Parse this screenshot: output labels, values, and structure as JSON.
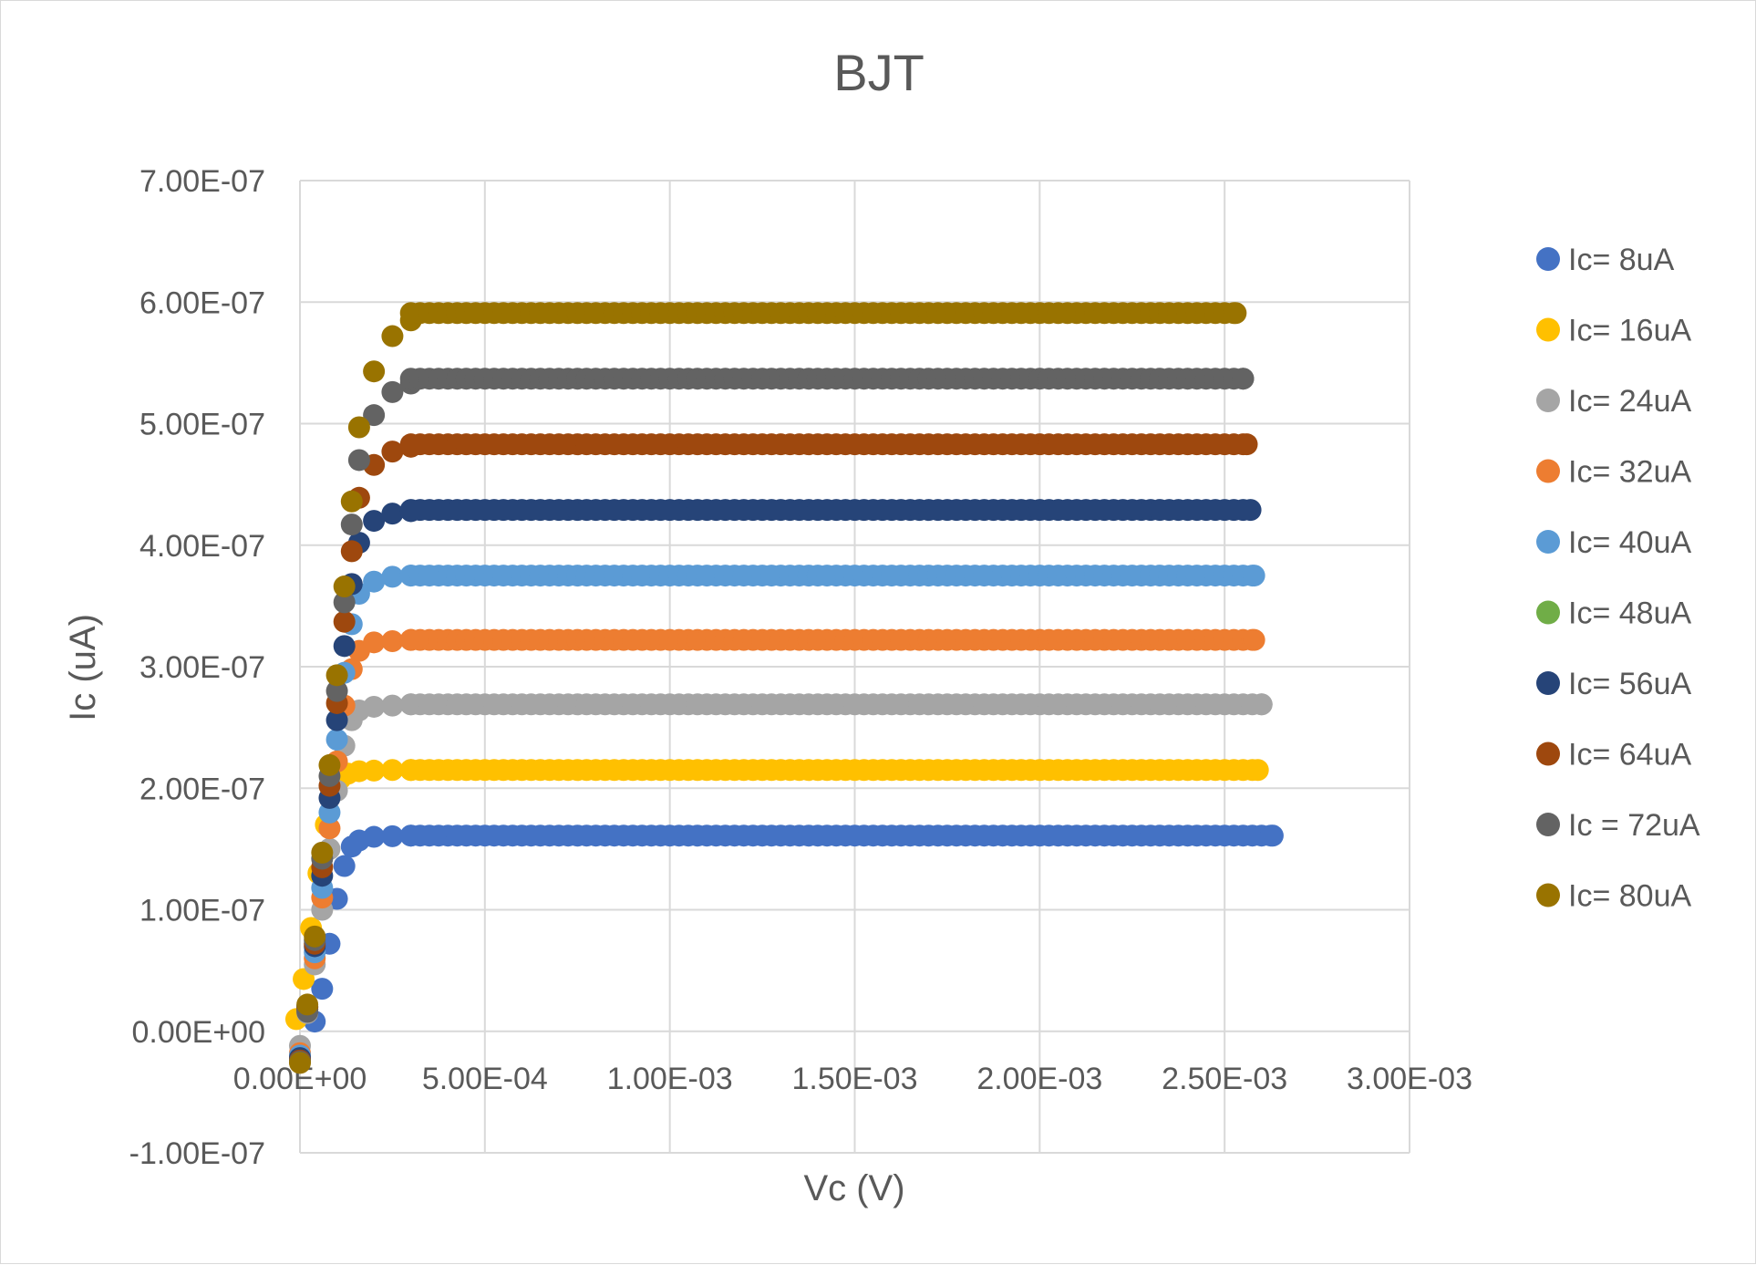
{
  "chart_data": {
    "type": "scatter",
    "title": "BJT",
    "xlabel": "Vc (V)",
    "ylabel": "Ic (uA)",
    "xlim": [
      0,
      0.003
    ],
    "ylim": [
      -1e-07,
      7e-07
    ],
    "x_ticks": [
      0,
      0.0005,
      0.001,
      0.0015,
      0.002,
      0.0025,
      0.003
    ],
    "y_ticks": [
      -1e-07,
      0,
      1e-07,
      2e-07,
      3e-07,
      4e-07,
      5e-07,
      6e-07,
      7e-07
    ],
    "x_tick_labels": [
      "0.00E+00",
      "5.00E-04",
      "1.00E-03",
      "1.50E-03",
      "2.00E-03",
      "2.50E-03",
      "3.00E-03"
    ],
    "y_tick_labels": [
      "-1.00E-07",
      "0.00E+00",
      "1.00E-07",
      "2.00E-07",
      "3.00E-07",
      "4.00E-07",
      "5.00E-07",
      "6.00E-07",
      "7.00E-07"
    ],
    "grid": true,
    "legend_position": "right",
    "series": [
      {
        "name": "Ic= 8uA",
        "color": "#4472C4",
        "x_end": 0.00263,
        "plateau": 1.61e-07,
        "x": [
          0,
          2e-05,
          4e-05,
          6e-05,
          8e-05,
          0.0001,
          0.00012,
          0.00014,
          0.00016,
          0.0002,
          0.00025,
          0.0003,
          0.0004,
          0.0005,
          0.001,
          0.0015,
          0.002,
          0.0025,
          0.00263
        ],
        "y": [
          -2e-08,
          2e-08,
          8e-09,
          3.5e-08,
          7.2e-08,
          1.09e-07,
          1.36e-07,
          1.52e-07,
          1.57e-07,
          1.6e-07,
          1.605e-07,
          1.61e-07,
          1.61e-07,
          1.61e-07,
          1.61e-07,
          1.61e-07,
          1.61e-07,
          1.61e-07,
          1.61e-07
        ]
      },
      {
        "name": "Ic= 16uA",
        "color": "#FFC000",
        "x_end": 0.00259,
        "plateau": 2.15e-07,
        "x": [
          -1e-05,
          1e-05,
          3e-05,
          5e-05,
          7e-05,
          9e-05,
          0.00011,
          0.00013,
          0.00016,
          0.0002,
          0.00025,
          0.0003,
          0.0004,
          0.0005,
          0.001,
          0.0015,
          0.002,
          0.0025,
          0.00259
        ],
        "y": [
          1e-08,
          4.3e-08,
          8.5e-08,
          1.3e-07,
          1.7e-07,
          1.97e-07,
          2.08e-07,
          2.12e-07,
          2.14e-07,
          2.145e-07,
          2.15e-07,
          2.15e-07,
          2.15e-07,
          2.15e-07,
          2.15e-07,
          2.15e-07,
          2.15e-07,
          2.15e-07,
          2.15e-07
        ]
      },
      {
        "name": "Ic= 24uA",
        "color": "#A5A5A5",
        "x_end": 0.0026,
        "plateau": 2.69e-07,
        "x": [
          0,
          2e-05,
          4e-05,
          6e-05,
          8e-05,
          0.0001,
          0.00012,
          0.00014,
          0.00016,
          0.0002,
          0.00025,
          0.0003,
          0.0004,
          0.0005,
          0.001,
          0.0015,
          0.002,
          0.0025,
          0.0026
        ],
        "y": [
          -1.2e-08,
          1.5e-08,
          5.5e-08,
          1e-07,
          1.5e-07,
          1.98e-07,
          2.35e-07,
          2.56e-07,
          2.64e-07,
          2.67e-07,
          2.68e-07,
          2.69e-07,
          2.69e-07,
          2.69e-07,
          2.69e-07,
          2.69e-07,
          2.69e-07,
          2.69e-07,
          2.69e-07
        ]
      },
      {
        "name": "Ic= 32uA",
        "color": "#ED7D31",
        "x_end": 0.00258,
        "plateau": 3.22e-07,
        "x": [
          0,
          2e-05,
          4e-05,
          6e-05,
          8e-05,
          0.0001,
          0.00012,
          0.00014,
          0.00016,
          0.0002,
          0.00025,
          0.0003,
          0.0004,
          0.0005,
          0.001,
          0.0015,
          0.002,
          0.0025,
          0.00258
        ],
        "y": [
          -1.8e-08,
          2e-08,
          6e-08,
          1.1e-07,
          1.67e-07,
          2.22e-07,
          2.68e-07,
          2.98e-07,
          3.13e-07,
          3.2e-07,
          3.21e-07,
          3.22e-07,
          3.22e-07,
          3.22e-07,
          3.22e-07,
          3.22e-07,
          3.22e-07,
          3.22e-07,
          3.22e-07
        ]
      },
      {
        "name": "Ic= 40uA",
        "color": "#5B9BD5",
        "x_end": 0.00258,
        "plateau": 3.75e-07,
        "x": [
          0,
          2e-05,
          4e-05,
          6e-05,
          8e-05,
          0.0001,
          0.00012,
          0.00014,
          0.00016,
          0.0002,
          0.00025,
          0.0003,
          0.0004,
          0.0005,
          0.001,
          0.0015,
          0.002,
          0.0025,
          0.00258
        ],
        "y": [
          -2e-08,
          1.8e-08,
          6.5e-08,
          1.18e-07,
          1.8e-07,
          2.4e-07,
          2.95e-07,
          3.35e-07,
          3.6e-07,
          3.7e-07,
          3.74e-07,
          3.75e-07,
          3.75e-07,
          3.75e-07,
          3.75e-07,
          3.75e-07,
          3.75e-07,
          3.75e-07,
          3.75e-07
        ]
      },
      {
        "name": "Ic= 48uA",
        "color": "#70AD47",
        "x_end": 0,
        "plateau": 0,
        "x": [],
        "y": []
      },
      {
        "name": "Ic= 56uA",
        "color": "#264478",
        "x_end": 0.00257,
        "plateau": 4.29e-07,
        "x": [
          0,
          2e-05,
          4e-05,
          6e-05,
          8e-05,
          0.0001,
          0.00012,
          0.00014,
          0.00016,
          0.0002,
          0.00025,
          0.0003,
          0.0004,
          0.0005,
          0.001,
          0.0015,
          0.002,
          0.0025,
          0.00257
        ],
        "y": [
          -2.2e-08,
          2e-08,
          7e-08,
          1.28e-07,
          1.92e-07,
          2.56e-07,
          3.17e-07,
          3.68e-07,
          4.02e-07,
          4.2e-07,
          4.26e-07,
          4.28e-07,
          4.29e-07,
          4.29e-07,
          4.29e-07,
          4.29e-07,
          4.29e-07,
          4.29e-07,
          4.29e-07
        ]
      },
      {
        "name": "Ic= 64uA",
        "color": "#9E480E",
        "x_end": 0.00256,
        "plateau": 4.83e-07,
        "x": [
          0,
          2e-05,
          4e-05,
          6e-05,
          8e-05,
          0.0001,
          0.00012,
          0.00014,
          0.00016,
          0.0002,
          0.00025,
          0.0003,
          0.0004,
          0.0005,
          0.001,
          0.0015,
          0.002,
          0.0025,
          0.00256
        ],
        "y": [
          -2.4e-08,
          1.8e-08,
          7.2e-08,
          1.35e-07,
          2.02e-07,
          2.7e-07,
          3.37e-07,
          3.95e-07,
          4.39e-07,
          4.66e-07,
          4.77e-07,
          4.81e-07,
          4.83e-07,
          4.83e-07,
          4.83e-07,
          4.83e-07,
          4.83e-07,
          4.83e-07,
          4.83e-07
        ]
      },
      {
        "name": "Ic = 72uA",
        "color": "#636363",
        "x_end": 0.00255,
        "plateau": 5.37e-07,
        "x": [
          0,
          2e-05,
          4e-05,
          6e-05,
          8e-05,
          0.0001,
          0.00012,
          0.00014,
          0.00016,
          0.0002,
          0.00025,
          0.0003,
          0.0004,
          0.0005,
          0.001,
          0.0015,
          0.002,
          0.0025,
          0.00255
        ],
        "y": [
          -2.5e-08,
          1.6e-08,
          7.5e-08,
          1.42e-07,
          2.1e-07,
          2.8e-07,
          3.53e-07,
          4.17e-07,
          4.7e-07,
          5.07e-07,
          5.26e-07,
          5.33e-07,
          5.36e-07,
          5.37e-07,
          5.37e-07,
          5.37e-07,
          5.37e-07,
          5.37e-07,
          5.37e-07
        ]
      },
      {
        "name": "Ic= 80uA",
        "color": "#997300",
        "x_end": 0.00253,
        "plateau": 5.91e-07,
        "x": [
          0,
          2e-05,
          4e-05,
          6e-05,
          8e-05,
          0.0001,
          0.00012,
          0.00014,
          0.00016,
          0.0002,
          0.00025,
          0.0003,
          0.0004,
          0.0005,
          0.001,
          0.0015,
          0.002,
          0.0025,
          0.00253
        ],
        "y": [
          -2.6e-08,
          2.2e-08,
          7.8e-08,
          1.47e-07,
          2.19e-07,
          2.93e-07,
          3.66e-07,
          4.36e-07,
          4.97e-07,
          5.43e-07,
          5.72e-07,
          5.85e-07,
          5.89e-07,
          5.91e-07,
          5.91e-07,
          5.91e-07,
          5.91e-07,
          5.91e-07,
          5.91e-07
        ]
      }
    ]
  }
}
